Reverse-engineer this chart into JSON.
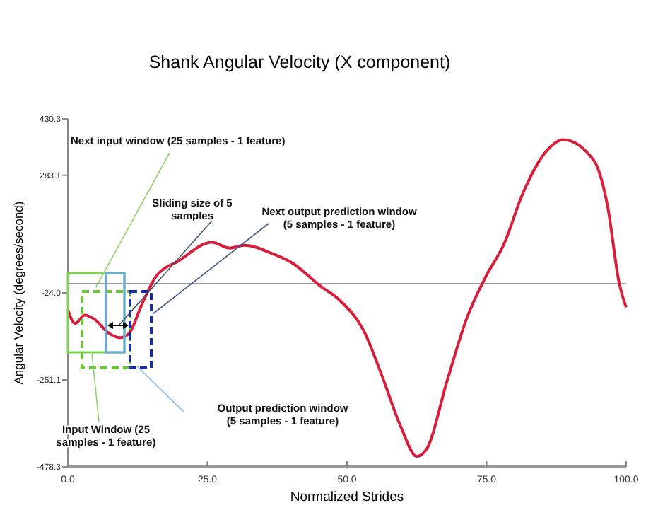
{
  "chart_data": {
    "type": "line",
    "title": "Shank Angular Velocity (X component)",
    "xlabel": "Normalized Strides",
    "ylabel": "Angular Velocity (degrees/second)",
    "x": [
      0,
      1.3,
      3,
      4.7,
      7.3,
      9.4,
      11,
      13.2,
      15.7,
      19.9,
      25.8,
      29,
      31.6,
      36.7,
      40.2,
      45.2,
      48.6,
      53.2,
      56.2,
      59.6,
      62.5,
      64.2,
      68,
      71.4,
      74.8,
      78.1,
      81.5,
      85.7,
      88.7,
      94.2,
      96.7,
      98.7,
      100
    ],
    "series": [
      {
        "color": "#d81e3a",
        "values": [
          -68,
          -104,
          -82,
          -92,
          -129,
          -141,
          -129,
          -56,
          17,
          60,
          108,
          93,
          100,
          78,
          54,
          -6,
          -42,
          -129,
          -238,
          -372,
          -451,
          -433,
          -250,
          -92,
          17,
          103,
          236,
          346,
          376,
          322,
          200,
          5,
          -62
        ]
      }
    ],
    "xlim": [
      0,
      100
    ],
    "ylim": [
      -478.3,
      430.3
    ],
    "xticks": [
      {
        "value": 0,
        "label": "0.0"
      },
      {
        "value": 25,
        "label": "25.0"
      },
      {
        "value": 50,
        "label": "50.0"
      },
      {
        "value": 75,
        "label": "75.0"
      },
      {
        "value": 100,
        "label": "100.0"
      }
    ],
    "yticks": [
      -478.3,
      -251.1,
      {
        "value": -24,
        "label": "-24.0"
      },
      283.1,
      430.3
    ],
    "ref_lines": [
      {
        "axis": "y",
        "value": 0,
        "color": "#999999"
      }
    ],
    "annotations": [
      {
        "text": "Next input window (25 samples - 1 feature)",
        "x": 5,
        "y": -10
      },
      "Sliding size of 5 samples",
      "Next output prediction window (5 samples - 1 feature)",
      "Output prediction window (5 samples - 1 feature)",
      "Input Window (25 samples - 1 feature)"
    ],
    "grid": false,
    "marker": "none",
    "line_style": "solid"
  }
}
